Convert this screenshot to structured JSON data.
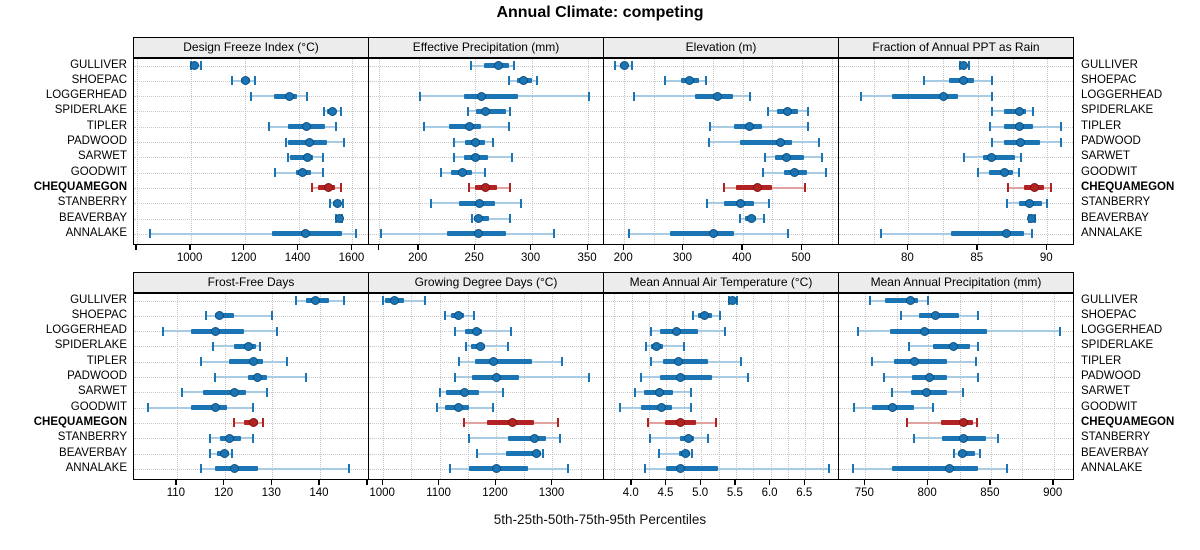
{
  "title": "Annual Climate: competing",
  "caption": "5th-25th-50th-75th-95th Percentiles",
  "percentile_labels": [
    "5th",
    "25th",
    "50th",
    "75th",
    "95th"
  ],
  "sites": [
    "GULLIVER",
    "SHOEPAC",
    "LOGGERHEAD",
    "SPIDERLAKE",
    "TIPLER",
    "PADWOOD",
    "SARWET",
    "GOODWIT",
    "CHEQUAMEGON",
    "STANBERRY",
    "BEAVERBAY",
    "ANNALAKE"
  ],
  "highlight_site": "CHEQUAMEGON",
  "colors": {
    "normal": "#1b74b4",
    "normal_dark": "#0d507e",
    "normal_light": "#a9cbe3",
    "highlight": "#b22222",
    "highlight_dark": "#7e1715",
    "highlight_light": "#e0a3a0",
    "strip_bg": "#ececec",
    "grid": "#c4c4c4",
    "border": "#000000"
  },
  "chart_data": {
    "type": "dotplot-percentiles",
    "layout": "2 rows x 4 cols, shared site rows, free x scales",
    "legend_position": "none",
    "grid": true,
    "panels": [
      {
        "title": "Design Freeze Index (°C)",
        "xlim": [
          790,
          1665
        ],
        "ticks": [
          1000,
          1200,
          1400,
          1600
        ],
        "tick_labels": [
          "1000",
          "1200",
          "1400",
          "1600"
        ],
        "unlabeled_ticks": [
          800
        ],
        "gridlines": [
          800,
          1000,
          1200,
          1400,
          1600
        ],
        "values": [
          [
            1000,
            1008,
            1016,
            1028,
            1040
          ],
          [
            1155,
            1188,
            1205,
            1220,
            1237
          ],
          [
            1222,
            1310,
            1365,
            1395,
            1432
          ],
          [
            1495,
            1507,
            1525,
            1540,
            1556
          ],
          [
            1290,
            1360,
            1428,
            1498,
            1540
          ],
          [
            1352,
            1360,
            1440,
            1505,
            1570
          ],
          [
            1360,
            1368,
            1435,
            1452,
            1490
          ],
          [
            1312,
            1390,
            1415,
            1445,
            1490
          ],
          [
            1450,
            1472,
            1510,
            1537,
            1556
          ],
          [
            1516,
            1526,
            1545,
            1556,
            1566
          ],
          [
            1540,
            1546,
            1551,
            1556,
            1561
          ],
          [
            850,
            1303,
            1427,
            1560,
            1612
          ]
        ]
      },
      {
        "title": "Effective Precipitation (mm)",
        "xlim": [
          156,
          365
        ],
        "ticks": [
          200,
          250,
          300,
          350
        ],
        "tick_labels": [
          "200",
          "250",
          "300",
          "350"
        ],
        "unlabeled_ticks": [
          165
        ],
        "gridlines": [
          165,
          200,
          250,
          300,
          350
        ],
        "values": [
          [
            246,
            258,
            271,
            280,
            284
          ],
          [
            280,
            287,
            293,
            300,
            305
          ],
          [
            201,
            240,
            256,
            288,
            351
          ],
          [
            244,
            251,
            259,
            277,
            281
          ],
          [
            205,
            227,
            245,
            255,
            280
          ],
          [
            231,
            241,
            250,
            259,
            266
          ],
          [
            231,
            240,
            250,
            261,
            283
          ],
          [
            220,
            229,
            239,
            247,
            259
          ],
          [
            245,
            250,
            259,
            269,
            281
          ],
          [
            211,
            236,
            254,
            268,
            291
          ],
          [
            247,
            249,
            253,
            262,
            281
          ],
          [
            167,
            225,
            253,
            277,
            320
          ]
        ]
      },
      {
        "title": "Elevation (m)",
        "xlim": [
          166,
          564
        ],
        "ticks": [
          200,
          300,
          400,
          500
        ],
        "tick_labels": [
          "200",
          "300",
          "400",
          "500"
        ],
        "unlabeled_ticks": [],
        "gridlines": [
          200,
          250,
          300,
          350,
          400,
          450,
          500,
          550
        ],
        "values": [
          [
            185,
            193,
            200,
            207,
            213
          ],
          [
            269,
            296,
            311,
            326,
            338
          ],
          [
            216,
            320,
            358,
            383,
            412
          ],
          [
            443,
            457,
            476,
            494,
            510
          ],
          [
            345,
            386,
            412,
            433,
            510
          ],
          [
            343,
            395,
            463,
            483,
            528
          ],
          [
            437,
            455,
            473,
            503,
            533
          ],
          [
            434,
            470,
            488,
            508,
            540
          ],
          [
            368,
            388,
            425,
            450,
            505
          ],
          [
            340,
            369,
            396,
            419,
            444
          ],
          [
            395,
            404,
            414,
            422,
            435
          ],
          [
            208,
            277,
            351,
            385,
            476
          ]
        ]
      },
      {
        "title": "Fraction of Annual PPT as Rain",
        "xlim": [
          75,
          92
        ],
        "ticks": [
          80,
          85,
          90
        ],
        "tick_labels": [
          "80",
          "85",
          "90"
        ],
        "unlabeled_ticks": [],
        "gridlines": [
          77.5,
          80,
          82.5,
          85,
          87.5,
          90
        ],
        "values": [
          [
            83.7,
            83.9,
            84.0,
            84.2,
            84.4
          ],
          [
            81.1,
            82.9,
            84.0,
            84.7,
            86.0
          ],
          [
            76.6,
            78.8,
            82.5,
            83.6,
            86.0
          ],
          [
            86.0,
            86.9,
            88.0,
            88.5,
            89.0
          ],
          [
            85.9,
            86.9,
            88.0,
            89.0,
            91.0
          ],
          [
            86.0,
            86.9,
            88.1,
            89.5,
            91.0
          ],
          [
            84.0,
            85.4,
            86.0,
            87.7,
            88.1
          ],
          [
            85.0,
            85.8,
            86.9,
            87.5,
            88.0
          ],
          [
            87.2,
            88.3,
            89.1,
            89.8,
            90.3
          ],
          [
            87.1,
            88.0,
            88.7,
            89.6,
            90.0
          ],
          [
            88.7,
            88.8,
            88.9,
            89.0,
            89.1
          ],
          [
            78.0,
            83.1,
            87.1,
            88.3,
            88.9
          ]
        ]
      },
      {
        "title": "Frost-Free Days",
        "xlim": [
          101,
          150.5
        ],
        "ticks": [
          110,
          120,
          130,
          140
        ],
        "tick_labels": [
          "110",
          "120",
          "130",
          "140"
        ],
        "unlabeled_ticks": [
          150
        ],
        "gridlines": [
          110,
          120,
          130,
          140,
          150
        ],
        "values": [
          [
            135,
            137,
            139,
            142,
            145
          ],
          [
            116,
            118,
            119,
            122,
            130
          ],
          [
            107,
            113,
            118,
            124,
            131
          ],
          [
            117.5,
            122,
            125,
            126.5,
            127.5
          ],
          [
            115,
            121,
            126,
            128,
            133
          ],
          [
            118,
            125,
            127,
            129,
            137
          ],
          [
            111,
            115.5,
            122,
            124.5,
            129
          ],
          [
            104,
            113,
            118,
            120.5,
            126
          ],
          [
            122,
            124,
            126,
            127,
            128
          ],
          [
            117,
            119,
            121,
            123.5,
            126
          ],
          [
            117,
            118.5,
            120,
            121,
            121.5
          ],
          [
            115,
            118,
            122,
            127,
            146
          ]
        ]
      },
      {
        "title": "Growing Degree Days (°C)",
        "xlim": [
          975,
          1393
        ],
        "ticks": [
          1000,
          1100,
          1200,
          1300
        ],
        "tick_labels": [
          "1000",
          "1100",
          "1200",
          "1300"
        ],
        "unlabeled_ticks": [],
        "gridlines": [
          1000,
          1050,
          1100,
          1150,
          1200,
          1250,
          1300,
          1350
        ],
        "values": [
          [
            1000,
            1003,
            1021,
            1037,
            1074
          ],
          [
            1109,
            1120,
            1134,
            1144,
            1161
          ],
          [
            1128,
            1145,
            1165,
            1175,
            1226
          ],
          [
            1146,
            1155,
            1172,
            1181,
            1221
          ],
          [
            1134,
            1163,
            1196,
            1263,
            1316
          ],
          [
            1127,
            1157,
            1200,
            1241,
            1364
          ],
          [
            1100,
            1112,
            1145,
            1170,
            1212
          ],
          [
            1095,
            1110,
            1133,
            1153,
            1194
          ],
          [
            1144,
            1184,
            1229,
            1268,
            1310
          ],
          [
            1153,
            1221,
            1268,
            1289,
            1314
          ],
          [
            1167,
            1218,
            1271,
            1279,
            1284
          ],
          [
            1119,
            1153,
            1200,
            1256,
            1327
          ]
        ]
      },
      {
        "title": "Mean Annual Air Temperature (°C)",
        "xlim": [
          3.6,
          7.0
        ],
        "ticks": [
          4.0,
          4.5,
          5.0,
          5.5,
          6.0,
          6.5
        ],
        "tick_labels": [
          "4.0",
          "4.5",
          "5.0",
          "5.5",
          "6.0",
          "6.5"
        ],
        "unlabeled_ticks": [],
        "gridlines": [
          3.75,
          4.0,
          4.25,
          4.5,
          4.75,
          5.0,
          5.25,
          5.5,
          5.75,
          6.0,
          6.25,
          6.5,
          6.75
        ],
        "values": [
          [
            5.4,
            5.43,
            5.45,
            5.48,
            5.52
          ],
          [
            4.88,
            4.95,
            5.05,
            5.15,
            5.27
          ],
          [
            4.27,
            4.4,
            4.64,
            4.95,
            5.35
          ],
          [
            4.2,
            4.28,
            4.35,
            4.45,
            4.75
          ],
          [
            4.27,
            4.45,
            4.67,
            5.1,
            5.58
          ],
          [
            4.14,
            4.4,
            4.7,
            5.15,
            5.68
          ],
          [
            4.04,
            4.17,
            4.4,
            4.6,
            4.85
          ],
          [
            3.83,
            4.14,
            4.43,
            4.58,
            4.85
          ],
          [
            4.24,
            4.48,
            4.7,
            4.92,
            5.22
          ],
          [
            4.26,
            4.7,
            4.82,
            4.9,
            5.1
          ],
          [
            4.39,
            4.68,
            4.78,
            4.84,
            4.87
          ],
          [
            4.19,
            4.5,
            4.7,
            5.24,
            6.84
          ]
        ]
      },
      {
        "title": "Mean Annual Precipitation (mm)",
        "xlim": [
          729,
          917
        ],
        "ticks": [
          750,
          800,
          850,
          900
        ],
        "tick_labels": [
          "750",
          "800",
          "850",
          "900"
        ],
        "unlabeled_ticks": [],
        "gridlines": [
          750,
          775,
          800,
          825,
          850,
          875,
          900
        ],
        "values": [
          [
            754,
            766,
            786,
            792,
            800
          ],
          [
            778,
            793,
            806,
            825,
            840
          ],
          [
            744,
            770,
            797,
            847,
            905
          ],
          [
            785,
            804,
            820,
            833,
            840
          ],
          [
            755,
            773,
            789,
            815,
            838
          ],
          [
            765,
            787,
            801,
            815,
            840
          ],
          [
            771,
            786,
            799,
            815,
            828
          ],
          [
            741,
            755,
            772,
            789,
            804
          ],
          [
            783,
            810,
            828,
            836,
            839
          ],
          [
            789,
            811,
            828,
            846,
            856
          ],
          [
            821,
            824,
            827,
            837,
            841
          ],
          [
            740,
            771,
            817,
            840,
            863
          ]
        ]
      }
    ]
  }
}
